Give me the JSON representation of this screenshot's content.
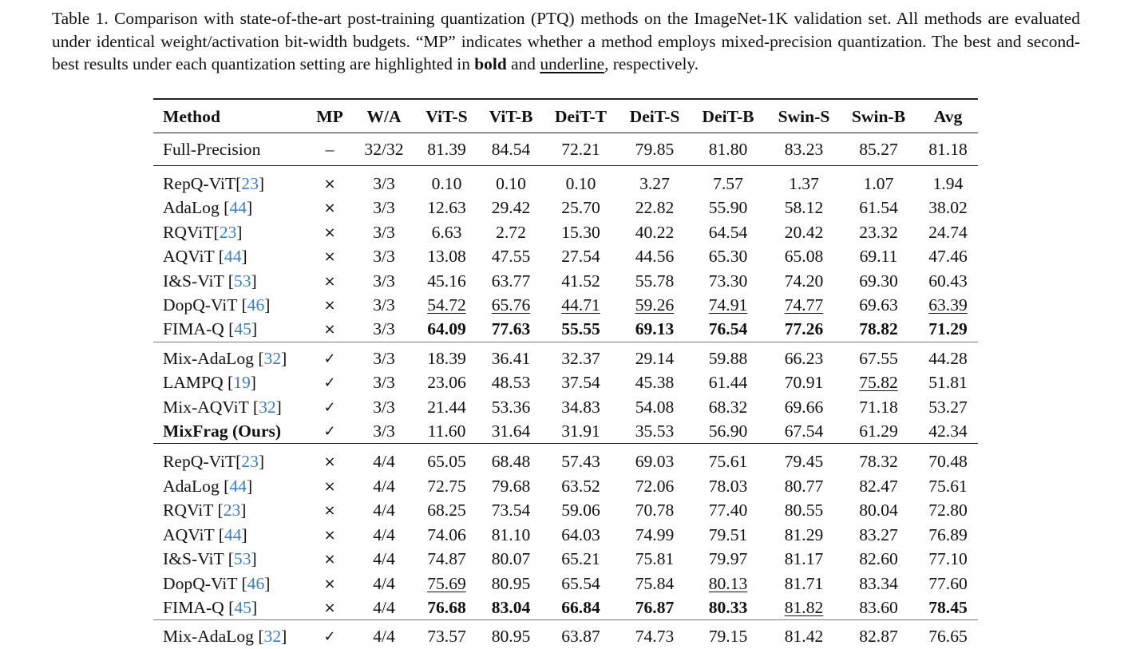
{
  "caption": {
    "part1": "Table 1. Comparison with state-of-the-art post-training quantization (PTQ) methods on the ImageNet-1K validation set. All methods are evaluated under identical weight/activation bit-width budgets. “MP” indicates whether a method employs mixed-precision quantization. The best and second-best results under each quantization setting are highlighted in ",
    "bold_word": "bold",
    "and_word": " and ",
    "underline_word": "underline",
    "part2": ", respectively."
  },
  "table": {
    "headers": [
      "Method",
      "MP",
      "W/A",
      "ViT-S",
      "ViT-B",
      "DeiT-T",
      "DeiT-S",
      "DeiT-B",
      "Swin-S",
      "Swin-B",
      "Avg"
    ],
    "full_precision": {
      "method": "Full-Precision",
      "mp": "–",
      "wa": "32/32",
      "vals": [
        "81.39",
        "84.54",
        "72.21",
        "79.85",
        "81.80",
        "83.23",
        "85.27",
        "81.18"
      ]
    },
    "groups": [
      {
        "rows": [
          {
            "name": "RepQ-ViT",
            "ref": "23",
            "space": false,
            "mp": "×",
            "wa": "3/3",
            "vals": [
              "0.10",
              "0.10",
              "0.10",
              "3.27",
              "7.57",
              "1.37",
              "1.07",
              "1.94"
            ],
            "styles": [
              "",
              "",
              "",
              "",
              "",
              "",
              "",
              ""
            ]
          },
          {
            "name": "AdaLog",
            "ref": "44",
            "space": true,
            "mp": "×",
            "wa": "3/3",
            "vals": [
              "12.63",
              "29.42",
              "25.70",
              "22.82",
              "55.90",
              "58.12",
              "61.54",
              "38.02"
            ],
            "styles": [
              "",
              "",
              "",
              "",
              "",
              "",
              "",
              ""
            ]
          },
          {
            "name": "RQViT",
            "ref": "23",
            "space": false,
            "mp": "×",
            "wa": "3/3",
            "vals": [
              "6.63",
              "2.72",
              "15.30",
              "40.22",
              "64.54",
              "20.42",
              "23.32",
              "24.74"
            ],
            "styles": [
              "",
              "",
              "",
              "",
              "",
              "",
              "",
              ""
            ]
          },
          {
            "name": "AQViT",
            "ref": "44",
            "space": true,
            "mp": "×",
            "wa": "3/3",
            "vals": [
              "13.08",
              "47.55",
              "27.54",
              "44.56",
              "65.30",
              "65.08",
              "69.11",
              "47.46"
            ],
            "styles": [
              "",
              "",
              "",
              "",
              "",
              "",
              "",
              ""
            ]
          },
          {
            "name": "I&S-ViT",
            "ref": "53",
            "space": true,
            "mp": "×",
            "wa": "3/3",
            "vals": [
              "45.16",
              "63.77",
              "41.52",
              "55.78",
              "73.30",
              "74.20",
              "69.30",
              "60.43"
            ],
            "styles": [
              "",
              "",
              "",
              "",
              "",
              "",
              "",
              ""
            ]
          },
          {
            "name": "DopQ-ViT",
            "ref": "46",
            "space": true,
            "mp": "×",
            "wa": "3/3",
            "vals": [
              "54.72",
              "65.76",
              "44.71",
              "59.26",
              "74.91",
              "74.77",
              "69.63",
              "63.39"
            ],
            "styles": [
              "u",
              "u",
              "u",
              "u",
              "u",
              "u",
              "",
              "u"
            ]
          },
          {
            "name": "FIMA-Q",
            "ref": "45",
            "space": true,
            "mp": "×",
            "wa": "3/3",
            "vals": [
              "64.09",
              "77.63",
              "55.55",
              "69.13",
              "76.54",
              "77.26",
              "78.82",
              "71.29"
            ],
            "styles": [
              "b",
              "b",
              "b",
              "b",
              "b",
              "b",
              "b",
              "b"
            ]
          }
        ],
        "separator": "light"
      },
      {
        "rows": [
          {
            "name": "Mix-AdaLog",
            "ref": "32",
            "space": true,
            "mp": "✓",
            "wa": "3/3",
            "vals": [
              "18.39",
              "36.41",
              "32.37",
              "29.14",
              "59.88",
              "66.23",
              "67.55",
              "44.28"
            ],
            "styles": [
              "",
              "",
              "",
              "",
              "",
              "",
              "",
              ""
            ]
          },
          {
            "name": "LAMPQ",
            "ref": "19",
            "space": true,
            "mp": "✓",
            "wa": "3/3",
            "vals": [
              "23.06",
              "48.53",
              "37.54",
              "45.38",
              "61.44",
              "70.91",
              "75.82",
              "51.81"
            ],
            "styles": [
              "",
              "",
              "",
              "",
              "",
              "",
              "u",
              ""
            ]
          },
          {
            "name": "Mix-AQViT",
            "ref": "32",
            "space": true,
            "mp": "✓",
            "wa": "3/3",
            "vals": [
              "21.44",
              "53.36",
              "34.83",
              "54.08",
              "68.32",
              "69.66",
              "71.18",
              "53.27"
            ],
            "styles": [
              "",
              "",
              "",
              "",
              "",
              "",
              "",
              ""
            ]
          },
          {
            "name": "MixFrag (Ours)",
            "ref": "",
            "bold": true,
            "space": false,
            "mp": "✓",
            "wa": "3/3",
            "vals": [
              "11.60",
              "31.64",
              "31.91",
              "35.53",
              "56.90",
              "67.54",
              "61.29",
              "42.34"
            ],
            "styles": [
              "",
              "",
              "",
              "",
              "",
              "",
              "",
              ""
            ]
          }
        ],
        "separator": "dark"
      },
      {
        "rows": [
          {
            "name": "RepQ-ViT",
            "ref": "23",
            "space": false,
            "mp": "×",
            "wa": "4/4",
            "vals": [
              "65.05",
              "68.48",
              "57.43",
              "69.03",
              "75.61",
              "79.45",
              "78.32",
              "70.48"
            ],
            "styles": [
              "",
              "",
              "",
              "",
              "",
              "",
              "",
              ""
            ]
          },
          {
            "name": "AdaLog",
            "ref": "44",
            "space": true,
            "mp": "×",
            "wa": "4/4",
            "vals": [
              "72.75",
              "79.68",
              "63.52",
              "72.06",
              "78.03",
              "80.77",
              "82.47",
              "75.61"
            ],
            "styles": [
              "",
              "",
              "",
              "",
              "",
              "",
              "",
              ""
            ]
          },
          {
            "name": "RQViT",
            "ref": "23",
            "space": true,
            "mp": "×",
            "wa": "4/4",
            "vals": [
              "68.25",
              "73.54",
              "59.06",
              "70.78",
              "77.40",
              "80.55",
              "80.04",
              "72.80"
            ],
            "styles": [
              "",
              "",
              "",
              "",
              "",
              "",
              "",
              ""
            ]
          },
          {
            "name": "AQViT",
            "ref": "44",
            "space": true,
            "mp": "×",
            "wa": "4/4",
            "vals": [
              "74.06",
              "81.10",
              "64.03",
              "74.99",
              "79.51",
              "81.29",
              "83.27",
              "76.89"
            ],
            "styles": [
              "",
              "",
              "",
              "",
              "",
              "",
              "",
              ""
            ]
          },
          {
            "name": "I&S-ViT",
            "ref": "53",
            "space": true,
            "mp": "×",
            "wa": "4/4",
            "vals": [
              "74.87",
              "80.07",
              "65.21",
              "75.81",
              "79.97",
              "81.17",
              "82.60",
              "77.10"
            ],
            "styles": [
              "",
              "",
              "",
              "",
              "",
              "",
              "",
              ""
            ]
          },
          {
            "name": "DopQ-ViT",
            "ref": "46",
            "space": true,
            "mp": "×",
            "wa": "4/4",
            "vals": [
              "75.69",
              "80.95",
              "65.54",
              "75.84",
              "80.13",
              "81.71",
              "83.34",
              "77.60"
            ],
            "styles": [
              "u",
              "",
              "",
              "",
              "u",
              "",
              "",
              ""
            ]
          },
          {
            "name": "FIMA-Q",
            "ref": "45",
            "space": true,
            "mp": "×",
            "wa": "4/4",
            "vals": [
              "76.68",
              "83.04",
              "66.84",
              "76.87",
              "80.33",
              "81.82",
              "83.60",
              "78.45"
            ],
            "styles": [
              "b",
              "b",
              "b",
              "b",
              "b",
              "u",
              "",
              "b"
            ]
          }
        ],
        "separator": "light"
      },
      {
        "rows": [
          {
            "name": "Mix-AdaLog",
            "ref": "32",
            "space": true,
            "mp": "✓",
            "wa": "4/4",
            "vals": [
              "73.57",
              "80.95",
              "63.87",
              "74.73",
              "79.15",
              "81.42",
              "82.87",
              "76.65"
            ],
            "styles": [
              "",
              "",
              "",
              "",
              "",
              "",
              "",
              ""
            ]
          }
        ],
        "separator": "none"
      }
    ]
  }
}
